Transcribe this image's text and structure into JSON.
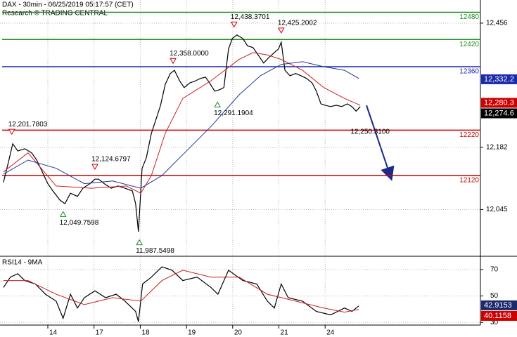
{
  "chart_data": [
    {
      "type": "line",
      "title": "DAX - 30min - 06/25/2019 05:17:57 (CET)",
      "subtitle": "Research © TRADING CENTRAL",
      "xlim": [
        -1.035,
        9.36
      ],
      "xticks": [
        0,
        1,
        2,
        3,
        4,
        5,
        6
      ],
      "ylim": [
        11942,
        12507
      ],
      "yticks": [
        {
          "value": 12045,
          "label": "12,045"
        },
        {
          "value": 12182,
          "label": "12,182"
        },
        {
          "value": 12456,
          "label": "12,456"
        }
      ],
      "grid": true,
      "series": [
        {
          "color": "#000000",
          "x": [
            -0.96,
            -0.85,
            -0.76,
            -0.65,
            -0.5,
            -0.35,
            -0.24,
            -0.12,
            0,
            0.11,
            0.26,
            0.37,
            0.49,
            0.64,
            0.76,
            0.91,
            1.02,
            1.1,
            1.22,
            1.37,
            1.52,
            1.67,
            1.83,
            1.9,
            1.96,
            2.04,
            2.13,
            2.24,
            2.34,
            2.44,
            2.54,
            2.65,
            2.74,
            2.85,
            2.95,
            3.07,
            3.2,
            3.3,
            3.41,
            3.5,
            3.61,
            3.71,
            3.81,
            3.91,
            3.99,
            4.09,
            4.22,
            4.32,
            4.44,
            4.57,
            4.67,
            4.78,
            4.9,
            4.99,
            5.05,
            5.13,
            5.24,
            5.36,
            5.48,
            5.6,
            5.72,
            5.81,
            5.91,
            6,
            6.12,
            6.24,
            6.36,
            6.48,
            6.58,
            6.67,
            6.76
          ],
          "values": [
            12105,
            12151,
            12190,
            12174,
            12179,
            12170,
            12154,
            12128,
            12102,
            12086,
            12066,
            12058,
            12081,
            12074,
            12092,
            12102,
            12112,
            12112,
            12102,
            12092,
            12097,
            12092,
            12086,
            12058,
            11996,
            12136,
            12159,
            12213,
            12244,
            12275,
            12321,
            12345,
            12352,
            12329,
            12314,
            12324,
            12329,
            12334,
            12337,
            12324,
            12306,
            12309,
            12314,
            12399,
            12422,
            12430,
            12422,
            12406,
            12402,
            12383,
            12368,
            12380,
            12391,
            12399,
            12414,
            12352,
            12340,
            12345,
            12340,
            12334,
            12324,
            12306,
            12278,
            12275,
            12272,
            12275,
            12272,
            12278,
            12272,
            12262,
            12272
          ]
        },
        {
          "color": "#cc1f1f",
          "x": [
            -0.96,
            -0.43,
            0.18,
            0.94,
            1.7,
            2.01,
            2.24,
            2.54,
            2.92,
            3.53,
            4.14,
            4.44,
            4.75,
            5.05,
            5.51,
            5.97,
            6.42,
            6.76
          ],
          "values": [
            12128,
            12170,
            12097,
            12092,
            12097,
            12081,
            12120,
            12213,
            12290,
            12329,
            12376,
            12391,
            12386,
            12376,
            12352,
            12314,
            12290,
            12275
          ]
        },
        {
          "color": "#23339a",
          "x": [
            -0.96,
            -0.43,
            0.18,
            0.79,
            1.4,
            2.01,
            2.47,
            2.92,
            3.53,
            4.14,
            4.6,
            5.05,
            5.51,
            5.97,
            6.42,
            6.73
          ],
          "values": [
            12123,
            12154,
            12136,
            12102,
            12108,
            12092,
            12120,
            12166,
            12228,
            12298,
            12340,
            12365,
            12371,
            12360,
            12352,
            12334
          ]
        }
      ],
      "levels": [
        {
          "value": 12480,
          "color": "#1e8c1e"
        },
        {
          "value": 12420,
          "color": "#1e8c1e"
        },
        {
          "value": 12360,
          "color": "#1a2aa8"
        },
        {
          "value": 12220,
          "color": "#cc0000"
        },
        {
          "value": 12120,
          "color": "#cc0000"
        }
      ],
      "annotations": [
        {
          "x": -0.78,
          "value": 12201.7803,
          "label": "12,201.7803",
          "kind": "high"
        },
        {
          "x": 0.33,
          "value": 12049.7598,
          "label": "12,049.7598",
          "kind": "low"
        },
        {
          "x": 1.02,
          "value": 12124.6797,
          "label": "12,124.6797",
          "kind": "high"
        },
        {
          "x": 1.98,
          "value": 11987.5498,
          "label": "11,987.5498",
          "kind": "low"
        },
        {
          "x": 2.71,
          "value": 12358.0,
          "label": "12,358.0000",
          "kind": "high"
        },
        {
          "x": 3.67,
          "value": 12291.1904,
          "label": "12,291.1904",
          "kind": "low"
        },
        {
          "x": 4.03,
          "value": 12438.3701,
          "label": "12,438.3701",
          "kind": "high"
        },
        {
          "x": 5.05,
          "value": 12425.2002,
          "label": "12,425.2002",
          "kind": "high"
        }
      ],
      "target": {
        "x": 6.55,
        "value": 12250.31,
        "label": "12,250.3100"
      },
      "markers": [
        {
          "value": 12332.2,
          "label": "12,332.2",
          "color": "#1a2aa8"
        },
        {
          "value": 12280.3,
          "label": "12,280.3",
          "color": "#cc0000"
        },
        {
          "value": 12274.6,
          "label": "12,274.6",
          "color": "#000000"
        }
      ]
    },
    {
      "type": "line",
      "title": "RSI14 - 9MA",
      "xlim": [
        -1.035,
        9.36
      ],
      "xticks": [
        {
          "value": 0,
          "label": "14"
        },
        {
          "value": 1,
          "label": "17"
        },
        {
          "value": 2,
          "label": "18"
        },
        {
          "value": 3,
          "label": "19"
        },
        {
          "value": 4,
          "label": "20"
        },
        {
          "value": 5,
          "label": "21"
        },
        {
          "value": 6,
          "label": "24"
        }
      ],
      "ylim": [
        28,
        79
      ],
      "yticks": [
        30,
        50,
        70
      ],
      "grid": true,
      "series": [
        {
          "color": "#000000",
          "x": [
            -0.96,
            -0.81,
            -0.65,
            -0.5,
            -0.27,
            -0.05,
            0.18,
            0.33,
            0.49,
            0.64,
            0.79,
            1.02,
            1.25,
            1.48,
            1.67,
            1.9,
            1.96,
            2.05,
            2.24,
            2.47,
            2.69,
            2.92,
            3.23,
            3.53,
            3.68,
            3.91,
            4.22,
            4.52,
            4.75,
            4.9,
            5.05,
            5.2,
            5.51,
            5.81,
            6.12,
            6.42,
            6.58,
            6.73
          ],
          "values": [
            56.5,
            64.3,
            66.9,
            61.7,
            59.1,
            51.3,
            46.1,
            33.1,
            51.3,
            40.9,
            48.7,
            53.9,
            48.7,
            51.3,
            46.1,
            38.3,
            30.5,
            59.1,
            64.3,
            72.1,
            69.5,
            61.7,
            64.3,
            56.5,
            51.3,
            69.5,
            61.7,
            59.1,
            46.1,
            40.9,
            59.1,
            48.7,
            46.1,
            38.3,
            35.7,
            40.9,
            38.3,
            42.5
          ]
        },
        {
          "color": "#cc1f1f",
          "x": [
            -0.96,
            -0.43,
            0.18,
            0.79,
            1.4,
            2.01,
            2.47,
            2.92,
            3.53,
            4.14,
            4.75,
            5.36,
            5.97,
            6.42,
            6.73
          ],
          "values": [
            61.7,
            61.7,
            51.3,
            43.5,
            48.7,
            46.1,
            61.7,
            69.5,
            64.3,
            64.3,
            51.3,
            46.1,
            40.9,
            37.8,
            39.9
          ]
        }
      ],
      "markers": [
        {
          "value": 42.9153,
          "label": "42.9153",
          "color": "#1a2a6a"
        },
        {
          "value": 40.1158,
          "label": "40.1158",
          "color": "#cc0000"
        }
      ]
    }
  ]
}
